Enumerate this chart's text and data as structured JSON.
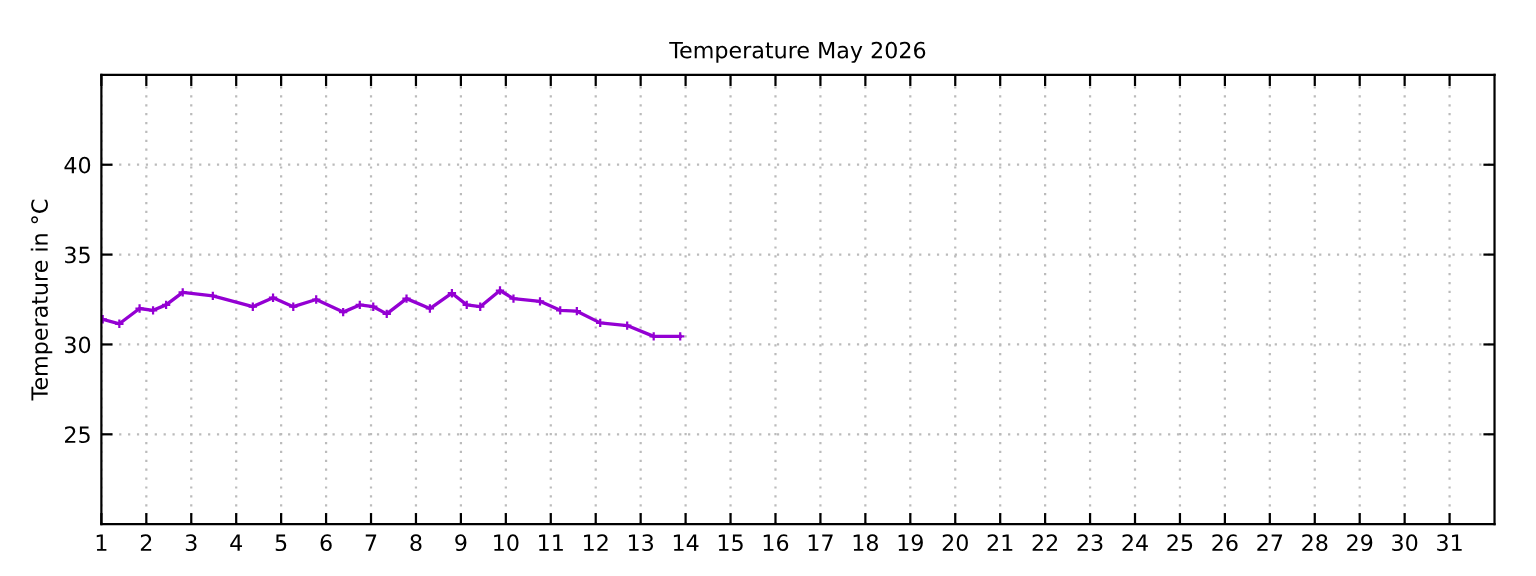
{
  "chart_data": {
    "type": "line",
    "title": "Temperature May 2026",
    "ylabel": "Temperature in °C",
    "xlim": [
      1,
      32
    ],
    "ylim": [
      20,
      45
    ],
    "xticks": [
      1,
      2,
      3,
      4,
      5,
      6,
      7,
      8,
      9,
      10,
      11,
      12,
      13,
      14,
      15,
      16,
      17,
      18,
      19,
      20,
      21,
      22,
      23,
      24,
      25,
      26,
      27,
      28,
      29,
      30,
      31
    ],
    "yticks": [
      25,
      30,
      35,
      40
    ],
    "grid": true,
    "marker": "cross",
    "line_style": "solid",
    "x": [
      1.03,
      1.4,
      1.85,
      2.15,
      2.44,
      2.81,
      3.48,
      4.37,
      4.82,
      5.27,
      5.78,
      6.38,
      6.75,
      7.05,
      7.35,
      7.79,
      8.31,
      8.8,
      9.13,
      9.43,
      9.87,
      10.17,
      10.76,
      11.21,
      11.58,
      12.1,
      12.7,
      13.29,
      13.88
    ],
    "series": [
      {
        "color": "#9400d3",
        "values": [
          31.4,
          31.15,
          32.0,
          31.9,
          32.2,
          32.9,
          32.7,
          32.1,
          32.6,
          32.1,
          32.5,
          31.8,
          32.2,
          32.1,
          31.7,
          32.55,
          32.0,
          32.85,
          32.2,
          32.1,
          33.0,
          32.55,
          32.4,
          31.9,
          31.85,
          31.2,
          31.05,
          30.45,
          30.45
        ]
      }
    ]
  }
}
